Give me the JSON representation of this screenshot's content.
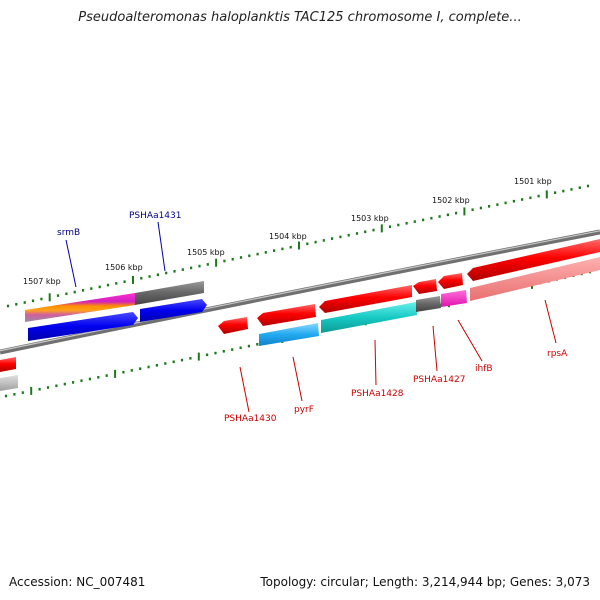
{
  "title": "Pseudoalteromonas haloplanktis TAC125 chromosome I, complete...",
  "footer": {
    "accession": "Accession: NC_007481",
    "topology": "Topology: circular; Length: 3,214,944 bp; Genes: 3,073"
  },
  "ruler": [
    "1507 kbp",
    "1506 kbp",
    "1505 kbp",
    "1504 kbp",
    "1503 kbp",
    "1502 kbp",
    "1501 kbp"
  ],
  "genes_above": [
    {
      "name": "srmB",
      "color": "#00008b"
    },
    {
      "name": "PSHAa1431",
      "color": "#00008b"
    }
  ],
  "genes_below": [
    {
      "name": "PSHAa1430",
      "color": "#cc0000"
    },
    {
      "name": "pyrF",
      "color": "#cc0000"
    },
    {
      "name": "PSHAa1428",
      "color": "#cc0000"
    },
    {
      "name": "PSHAa1427",
      "color": "#cc0000"
    },
    {
      "name": "ihfB",
      "color": "#cc0000"
    },
    {
      "name": "rpsA",
      "color": "#cc0000"
    }
  ]
}
